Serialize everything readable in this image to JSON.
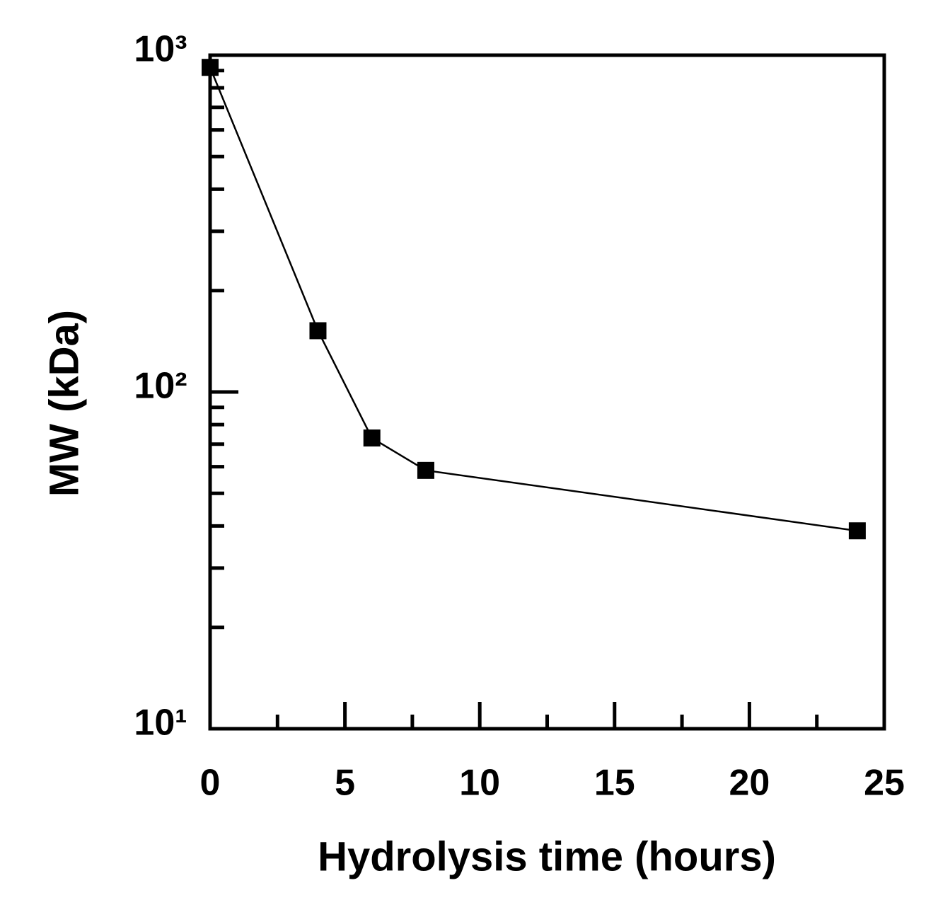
{
  "chart_data": {
    "type": "line",
    "x_label": "Hydrolysis time (hours)",
    "y_label": "MW (kDa)",
    "series": [
      {
        "name": "MW",
        "color": "#000000",
        "x": [
          0,
          4,
          6,
          8,
          24
        ],
        "values": [
          920,
          152,
          73,
          58.5,
          38.7
        ]
      }
    ],
    "xlim": [
      0,
      25
    ],
    "xticks": [
      0,
      5,
      10,
      15,
      20,
      25
    ],
    "xminorticks": [
      2.5,
      7.5,
      12.5,
      17.5,
      22.5
    ],
    "ylim": [
      10,
      1000
    ],
    "log_y": true,
    "yticks": [
      {
        "value": 10,
        "label": "10¹"
      },
      {
        "value": 100,
        "label": "10²"
      },
      {
        "value": 1000,
        "label": "10³"
      }
    ],
    "yminorticks": [
      20,
      30,
      40,
      50,
      60,
      70,
      80,
      90,
      200,
      300,
      400,
      500,
      600,
      700,
      800,
      900
    ],
    "marker": "square"
  }
}
